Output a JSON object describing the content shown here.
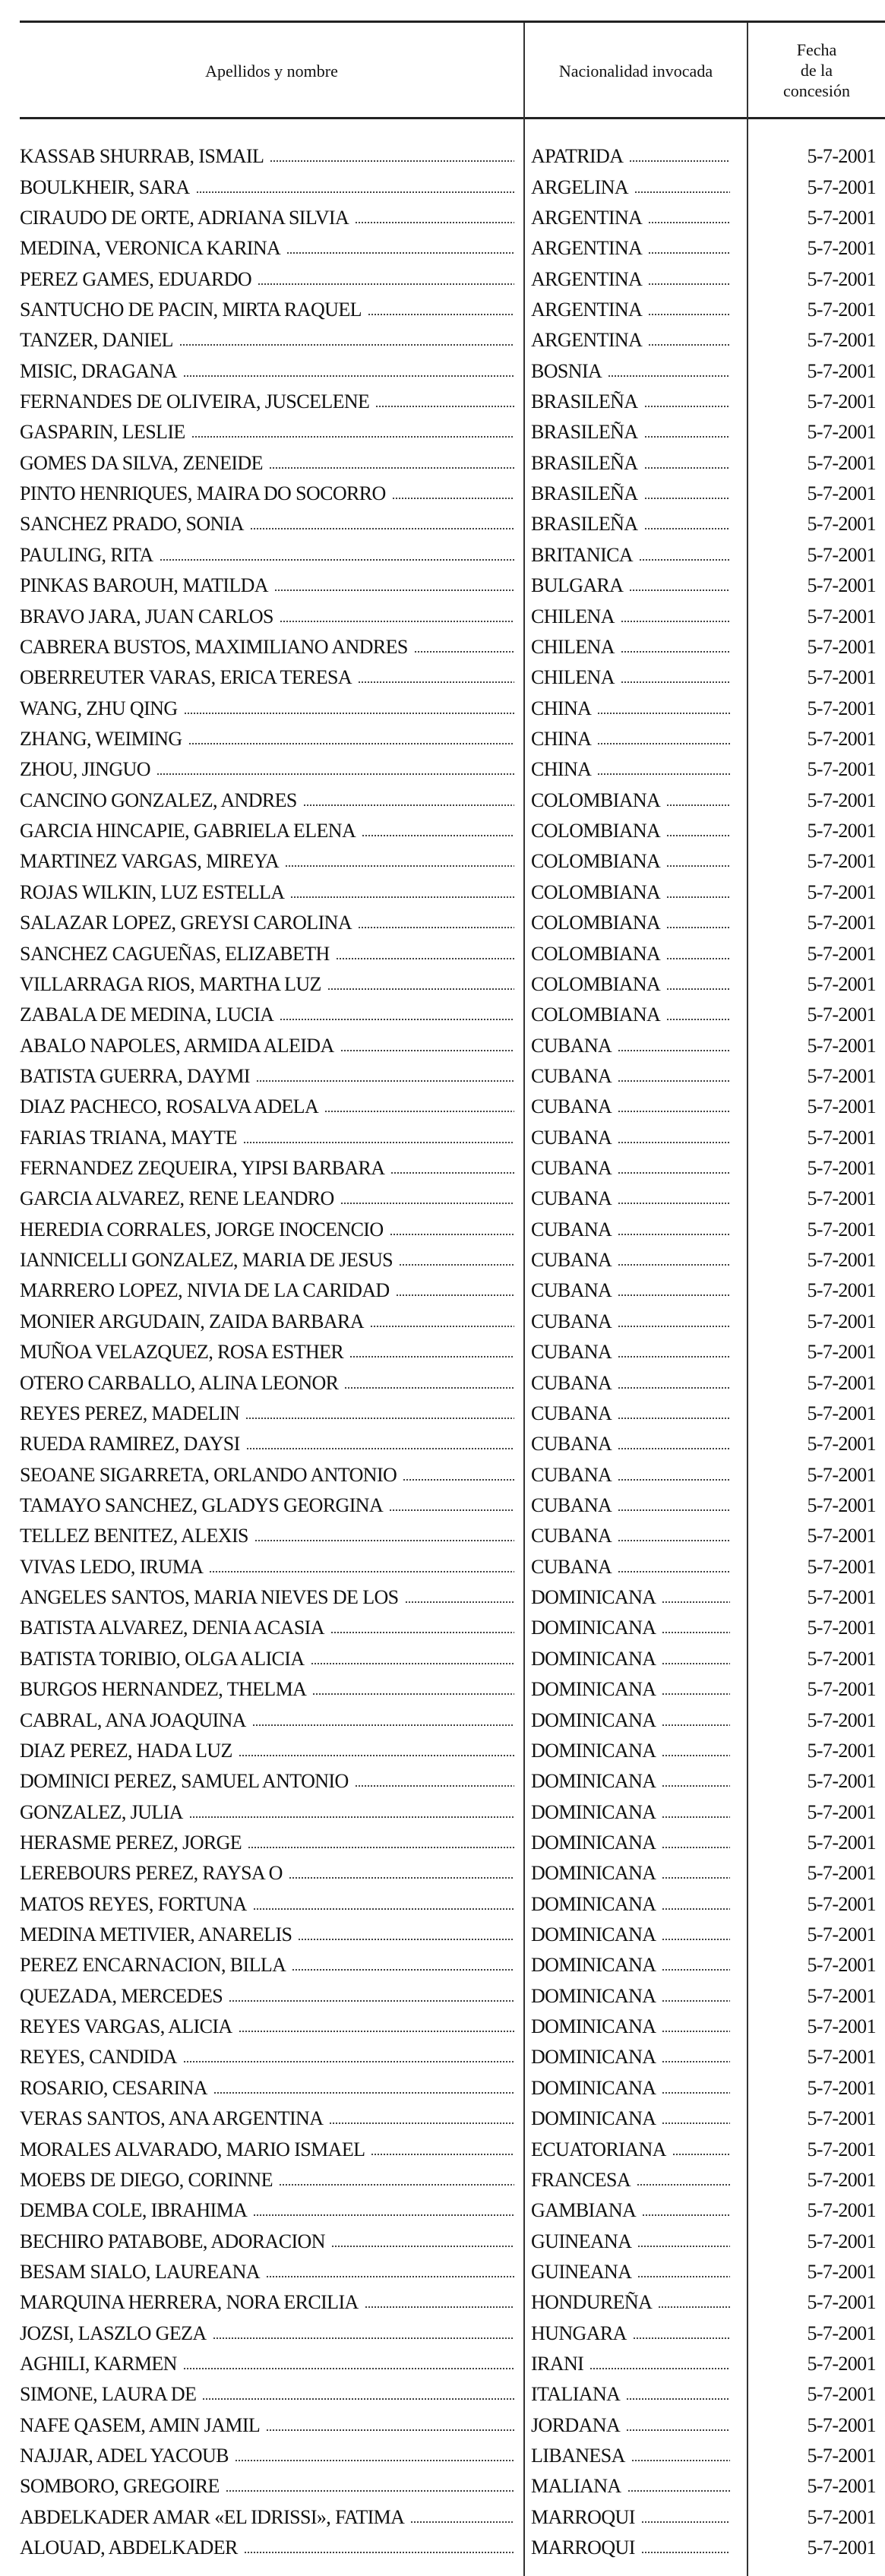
{
  "header": {
    "name_col": "Apellidos y nombre",
    "nationality_col": "Nacionalidad invocada",
    "date_col_lines": [
      "Fecha",
      "de la",
      "concesión"
    ]
  },
  "rows": [
    {
      "name": "KASSAB SHURRAB, ISMAIL",
      "nationality": "APATRIDA",
      "date": "5-7-2001"
    },
    {
      "name": "BOULKHEIR, SARA",
      "nationality": "ARGELINA",
      "date": "5-7-2001"
    },
    {
      "name": "CIRAUDO DE ORTE, ADRIANA SILVIA",
      "nationality": "ARGENTINA",
      "date": "5-7-2001"
    },
    {
      "name": "MEDINA, VERONICA KARINA",
      "nationality": "ARGENTINA",
      "date": "5-7-2001"
    },
    {
      "name": "PEREZ GAMES, EDUARDO",
      "nationality": "ARGENTINA",
      "date": "5-7-2001"
    },
    {
      "name": "SANTUCHO DE PACIN, MIRTA RAQUEL",
      "nationality": "ARGENTINA",
      "date": "5-7-2001"
    },
    {
      "name": "TANZER, DANIEL",
      "nationality": "ARGENTINA",
      "date": "5-7-2001"
    },
    {
      "name": "MISIC, DRAGANA",
      "nationality": "BOSNIA",
      "date": "5-7-2001"
    },
    {
      "name": "FERNANDES DE OLIVEIRA, JUSCELENE",
      "nationality": "BRASILEÑA",
      "date": "5-7-2001"
    },
    {
      "name": "GASPARIN, LESLIE",
      "nationality": "BRASILEÑA",
      "date": "5-7-2001"
    },
    {
      "name": "GOMES DA SILVA, ZENEIDE",
      "nationality": "BRASILEÑA",
      "date": "5-7-2001"
    },
    {
      "name": "PINTO HENRIQUES, MAIRA DO SOCORRO",
      "nationality": "BRASILEÑA",
      "date": "5-7-2001"
    },
    {
      "name": "SANCHEZ PRADO, SONIA",
      "nationality": "BRASILEÑA",
      "date": "5-7-2001"
    },
    {
      "name": "PAULING, RITA",
      "nationality": "BRITANICA",
      "date": "5-7-2001"
    },
    {
      "name": "PINKAS BAROUH, MATILDA",
      "nationality": "BULGARA",
      "date": "5-7-2001"
    },
    {
      "name": "BRAVO JARA, JUAN CARLOS",
      "nationality": "CHILENA",
      "date": "5-7-2001"
    },
    {
      "name": "CABRERA BUSTOS, MAXIMILIANO ANDRES",
      "nationality": "CHILENA",
      "date": "5-7-2001"
    },
    {
      "name": "OBERREUTER VARAS, ERICA TERESA",
      "nationality": "CHILENA",
      "date": "5-7-2001"
    },
    {
      "name": "WANG, ZHU QING",
      "nationality": "CHINA",
      "date": "5-7-2001"
    },
    {
      "name": "ZHANG, WEIMING",
      "nationality": "CHINA",
      "date": "5-7-2001"
    },
    {
      "name": "ZHOU, JINGUO",
      "nationality": "CHINA",
      "date": "5-7-2001"
    },
    {
      "name": "CANCINO GONZALEZ, ANDRES",
      "nationality": "COLOMBIANA",
      "date": "5-7-2001"
    },
    {
      "name": "GARCIA HINCAPIE, GABRIELA ELENA",
      "nationality": "COLOMBIANA",
      "date": "5-7-2001"
    },
    {
      "name": "MARTINEZ VARGAS, MIREYA",
      "nationality": "COLOMBIANA",
      "date": "5-7-2001"
    },
    {
      "name": "ROJAS WILKIN, LUZ ESTELLA",
      "nationality": "COLOMBIANA",
      "date": "5-7-2001"
    },
    {
      "name": "SALAZAR LOPEZ, GREYSI CAROLINA",
      "nationality": "COLOMBIANA",
      "date": "5-7-2001"
    },
    {
      "name": "SANCHEZ CAGUEÑAS, ELIZABETH",
      "nationality": "COLOMBIANA",
      "date": "5-7-2001"
    },
    {
      "name": "VILLARRAGA RIOS, MARTHA LUZ",
      "nationality": "COLOMBIANA",
      "date": "5-7-2001"
    },
    {
      "name": "ZABALA DE MEDINA, LUCIA",
      "nationality": "COLOMBIANA",
      "date": "5-7-2001"
    },
    {
      "name": "ABALO NAPOLES, ARMIDA ALEIDA",
      "nationality": "CUBANA",
      "date": "5-7-2001"
    },
    {
      "name": "BATISTA GUERRA, DAYMI",
      "nationality": "CUBANA",
      "date": "5-7-2001"
    },
    {
      "name": "DIAZ PACHECO, ROSALVA ADELA",
      "nationality": "CUBANA",
      "date": "5-7-2001"
    },
    {
      "name": "FARIAS TRIANA, MAYTE",
      "nationality": "CUBANA",
      "date": "5-7-2001"
    },
    {
      "name": "FERNANDEZ ZEQUEIRA, YIPSI BARBARA",
      "nationality": "CUBANA",
      "date": "5-7-2001"
    },
    {
      "name": "GARCIA ALVAREZ, RENE LEANDRO",
      "nationality": "CUBANA",
      "date": "5-7-2001"
    },
    {
      "name": "HEREDIA CORRALES, JORGE INOCENCIO",
      "nationality": "CUBANA",
      "date": "5-7-2001"
    },
    {
      "name": "IANNICELLI GONZALEZ, MARIA DE JESUS",
      "nationality": "CUBANA",
      "date": "5-7-2001"
    },
    {
      "name": "MARRERO LOPEZ, NIVIA DE LA CARIDAD",
      "nationality": "CUBANA",
      "date": "5-7-2001"
    },
    {
      "name": "MONIER ARGUDAIN, ZAIDA BARBARA",
      "nationality": "CUBANA",
      "date": "5-7-2001"
    },
    {
      "name": "MUÑOA VELAZQUEZ, ROSA ESTHER",
      "nationality": "CUBANA",
      "date": "5-7-2001"
    },
    {
      "name": "OTERO CARBALLO, ALINA LEONOR",
      "nationality": "CUBANA",
      "date": "5-7-2001"
    },
    {
      "name": "REYES PEREZ, MADELIN",
      "nationality": "CUBANA",
      "date": "5-7-2001"
    },
    {
      "name": "RUEDA RAMIREZ, DAYSI",
      "nationality": "CUBANA",
      "date": "5-7-2001"
    },
    {
      "name": "SEOANE SIGARRETA, ORLANDO ANTONIO",
      "nationality": "CUBANA",
      "date": "5-7-2001"
    },
    {
      "name": "TAMAYO SANCHEZ, GLADYS GEORGINA",
      "nationality": "CUBANA",
      "date": "5-7-2001"
    },
    {
      "name": "TELLEZ BENITEZ, ALEXIS",
      "nationality": "CUBANA",
      "date": "5-7-2001"
    },
    {
      "name": "VIVAS LEDO, IRUMA",
      "nationality": "CUBANA",
      "date": "5-7-2001"
    },
    {
      "name": "ANGELES SANTOS, MARIA NIEVES DE LOS",
      "nationality": "DOMINICANA",
      "date": "5-7-2001"
    },
    {
      "name": "BATISTA ALVAREZ, DENIA ACASIA",
      "nationality": "DOMINICANA",
      "date": "5-7-2001"
    },
    {
      "name": "BATISTA TORIBIO, OLGA ALICIA",
      "nationality": "DOMINICANA",
      "date": "5-7-2001"
    },
    {
      "name": "BURGOS HERNANDEZ, THELMA",
      "nationality": "DOMINICANA",
      "date": "5-7-2001"
    },
    {
      "name": "CABRAL, ANA JOAQUINA",
      "nationality": "DOMINICANA",
      "date": "5-7-2001"
    },
    {
      "name": "DIAZ PEREZ, HADA LUZ",
      "nationality": "DOMINICANA",
      "date": "5-7-2001"
    },
    {
      "name": "DOMINICI PEREZ, SAMUEL ANTONIO",
      "nationality": "DOMINICANA",
      "date": "5-7-2001"
    },
    {
      "name": "GONZALEZ, JULIA",
      "nationality": "DOMINICANA",
      "date": "5-7-2001"
    },
    {
      "name": "HERASME PEREZ, JORGE",
      "nationality": "DOMINICANA",
      "date": "5-7-2001"
    },
    {
      "name": "LEREBOURS PEREZ, RAYSA O",
      "nationality": "DOMINICANA",
      "date": "5-7-2001"
    },
    {
      "name": "MATOS REYES, FORTUNA",
      "nationality": "DOMINICANA",
      "date": "5-7-2001"
    },
    {
      "name": "MEDINA METIVIER, ANARELIS",
      "nationality": "DOMINICANA",
      "date": "5-7-2001"
    },
    {
      "name": "PEREZ ENCARNACION, BILLA",
      "nationality": "DOMINICANA",
      "date": "5-7-2001"
    },
    {
      "name": "QUEZADA, MERCEDES",
      "nationality": "DOMINICANA",
      "date": "5-7-2001"
    },
    {
      "name": "REYES VARGAS, ALICIA",
      "nationality": "DOMINICANA",
      "date": "5-7-2001"
    },
    {
      "name": "REYES, CANDIDA",
      "nationality": "DOMINICANA",
      "date": "5-7-2001"
    },
    {
      "name": "ROSARIO, CESARINA",
      "nationality": "DOMINICANA",
      "date": "5-7-2001"
    },
    {
      "name": "VERAS SANTOS, ANA ARGENTINA",
      "nationality": "DOMINICANA",
      "date": "5-7-2001"
    },
    {
      "name": "MORALES ALVARADO, MARIO ISMAEL",
      "nationality": "ECUATORIANA",
      "date": "5-7-2001"
    },
    {
      "name": "MOEBS DE DIEGO, CORINNE",
      "nationality": "FRANCESA",
      "date": "5-7-2001"
    },
    {
      "name": "DEMBA COLE, IBRAHIMA",
      "nationality": "GAMBIANA",
      "date": "5-7-2001"
    },
    {
      "name": "BECHIRO PATABOBE, ADORACION",
      "nationality": "GUINEANA",
      "date": "5-7-2001"
    },
    {
      "name": "BESAM SIALO, LAUREANA",
      "nationality": "GUINEANA",
      "date": "5-7-2001"
    },
    {
      "name": "MARQUINA HERRERA, NORA ERCILIA",
      "nationality": "HONDUREÑA",
      "date": "5-7-2001"
    },
    {
      "name": "JOZSI, LASZLO GEZA",
      "nationality": "HUNGARA",
      "date": "5-7-2001"
    },
    {
      "name": "AGHILI, KARMEN",
      "nationality": "IRANI",
      "date": "5-7-2001"
    },
    {
      "name": "SIMONE, LAURA DE",
      "nationality": "ITALIANA",
      "date": "5-7-2001"
    },
    {
      "name": "NAFE QASEM, AMIN JAMIL",
      "nationality": "JORDANA",
      "date": "5-7-2001"
    },
    {
      "name": "NAJJAR, ADEL YACOUB",
      "nationality": "LIBANESA",
      "date": "5-7-2001"
    },
    {
      "name": "SOMBORO, GREGOIRE",
      "nationality": "MALIANA",
      "date": "5-7-2001"
    },
    {
      "name": "ABDELKADER AMAR «EL IDRISSI», FATIMA",
      "nationality": "MARROQUI",
      "date": "5-7-2001"
    },
    {
      "name": "ALOUAD, ABDELKADER",
      "nationality": "MARROQUI",
      "date": "5-7-2001"
    }
  ]
}
